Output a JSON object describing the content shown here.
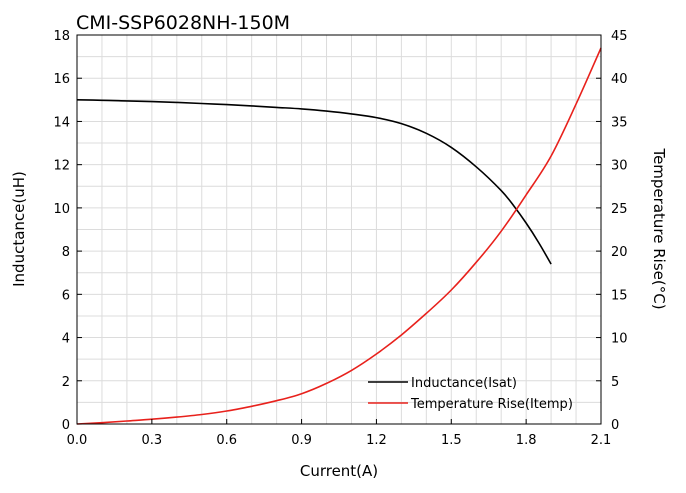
{
  "chart_data": {
    "type": "line",
    "title": "CMI-SSP6028NH-150M",
    "xlabel": "Current(A)",
    "ylabel_left": "Inductance(uH)",
    "ylabel_right": "Temperature Rise(°C)",
    "xlim": [
      0,
      2.1
    ],
    "ylim_left": [
      0,
      18
    ],
    "ylim_right": [
      0,
      45
    ],
    "x_ticks": [
      "0.0",
      "0.3",
      "0.6",
      "0.9",
      "1.2",
      "1.5",
      "1.8",
      "2.1"
    ],
    "y_left_ticks": [
      "0",
      "2",
      "4",
      "6",
      "8",
      "10",
      "12",
      "14",
      "16",
      "18"
    ],
    "y_right_ticks": [
      "0",
      "5",
      "10",
      "15",
      "20",
      "25",
      "30",
      "35",
      "40",
      "45"
    ],
    "grid": true,
    "legend_position": "bottom-right",
    "series": [
      {
        "name": "Inductance(Isat)",
        "axis": "left",
        "color": "#000000",
        "x": [
          0.0,
          0.1,
          0.2,
          0.3,
          0.4,
          0.5,
          0.6,
          0.7,
          0.8,
          0.9,
          1.0,
          1.1,
          1.2,
          1.3,
          1.4,
          1.5,
          1.6,
          1.7,
          1.75,
          1.8,
          1.85,
          1.9
        ],
        "y": [
          15.0,
          14.98,
          14.95,
          14.92,
          14.88,
          14.83,
          14.78,
          14.72,
          14.65,
          14.58,
          14.48,
          14.35,
          14.18,
          13.9,
          13.45,
          12.8,
          11.9,
          10.8,
          10.1,
          9.3,
          8.4,
          7.4
        ]
      },
      {
        "name": "Temperature Rise(Itemp)",
        "axis": "right",
        "color": "#e8211c",
        "x": [
          0.0,
          0.1,
          0.2,
          0.3,
          0.4,
          0.5,
          0.6,
          0.7,
          0.8,
          0.9,
          1.0,
          1.1,
          1.2,
          1.3,
          1.4,
          1.5,
          1.6,
          1.7,
          1.8,
          1.9,
          2.0,
          2.1
        ],
        "y": [
          0.0,
          0.15,
          0.35,
          0.55,
          0.8,
          1.1,
          1.5,
          2.05,
          2.7,
          3.5,
          4.7,
          6.2,
          8.1,
          10.3,
          12.8,
          15.5,
          18.7,
          22.3,
          26.5,
          31.0,
          37.0,
          43.5
        ]
      }
    ]
  }
}
